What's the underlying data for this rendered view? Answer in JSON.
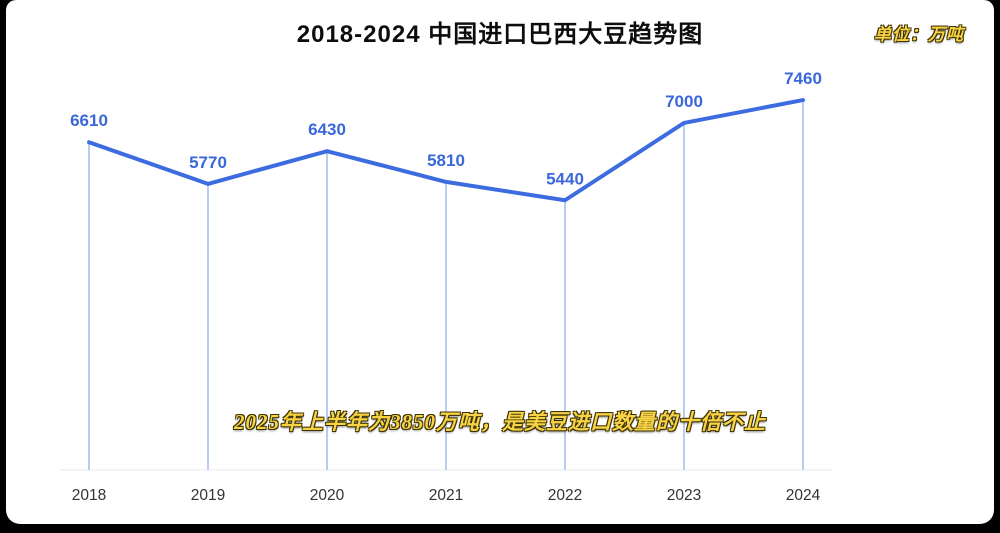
{
  "title": "2018-2024 中国进口巴西大豆趋势图",
  "unit_label": "单位：万吨",
  "annotation": "2025年上半年为3850万吨，是美豆进口数量的十倍不止",
  "colors": {
    "line": "#3d6ce0",
    "drop_line": "#b9cdf4",
    "value_label": "#3a68d8",
    "axis_text": "#333333",
    "baseline": "#e9e9e9",
    "accent_yellow": "#f7d245"
  },
  "chart_data": {
    "type": "line",
    "categories": [
      "2018",
      "2019",
      "2020",
      "2021",
      "2022",
      "2023",
      "2024"
    ],
    "values": [
      6610,
      5770,
      6430,
      5810,
      5440,
      7000,
      7460
    ],
    "series_name": "中国进口巴西大豆",
    "title": "2018-2024 中国进口巴西大豆趋势图",
    "unit": "万吨",
    "xlabel": "",
    "ylabel": "",
    "ylim": [
      0,
      8000
    ],
    "grid": false,
    "legend": "none",
    "data_labels": true,
    "drop_lines": true
  }
}
